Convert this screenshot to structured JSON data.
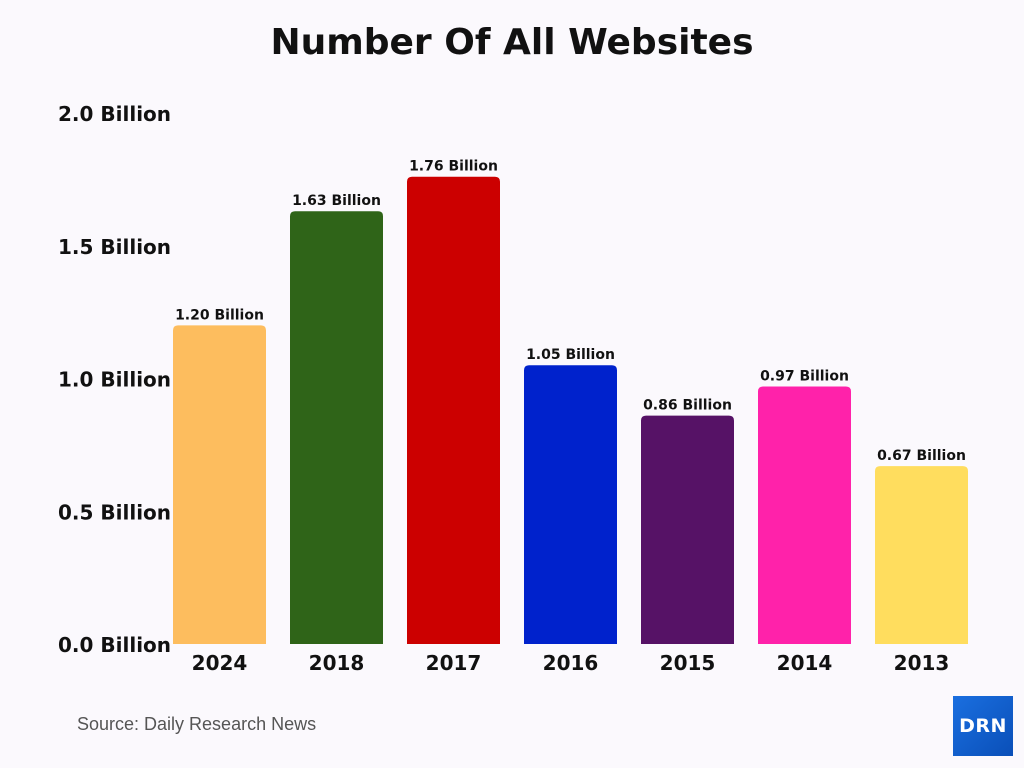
{
  "chart_data": {
    "type": "bar",
    "title": "Number Of All Websites",
    "categories": [
      "2024",
      "2018",
      "2017",
      "2016",
      "2015",
      "2014",
      "2013"
    ],
    "values": [
      1.2,
      1.63,
      1.76,
      1.05,
      0.86,
      0.97,
      0.67
    ],
    "data_labels": [
      "1.20 Billion",
      "1.63 Billion",
      "1.76 Billion",
      "1.05 Billion",
      "0.86 Billion",
      "0.97 Billion",
      "0.67 Billion"
    ],
    "colors": [
      "#fdbd5e",
      "#2f6418",
      "#cc0000",
      "#0022cc",
      "#561266",
      "#ff22aa",
      "#ffdd5e"
    ],
    "yticks": [
      0,
      0.5,
      1.0,
      1.5,
      2.0
    ],
    "ytick_labels": [
      "0.0 Billion",
      "0.5 Billion",
      "1.0 Billion",
      "1.5 Billion",
      "2.0 Billion"
    ],
    "ylim": [
      0,
      2.0
    ],
    "xlabel": "",
    "ylabel": "",
    "grid": false,
    "legend": "none"
  },
  "source": "Source: Daily Research News",
  "logo": "DRN"
}
